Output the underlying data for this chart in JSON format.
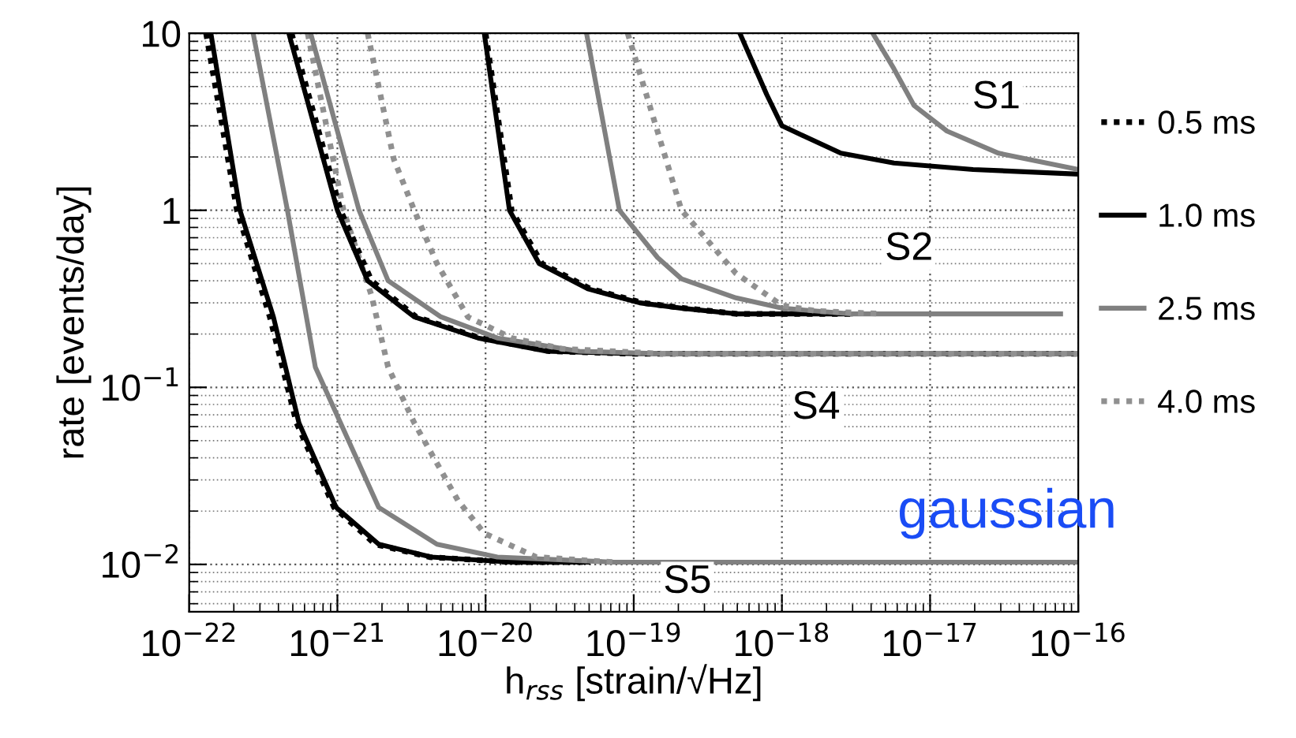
{
  "chart_data": {
    "type": "line",
    "xlabel": "h$_{rss}$ [strain/√Hz]",
    "ylabel": "rate [events/day]",
    "log": "xy",
    "xlim": [
      1e-22,
      1e-16
    ],
    "ylim": [
      0.0054,
      10
    ],
    "xticks": [
      {
        "value": 1e-22,
        "label": "10$^{−22}$"
      },
      {
        "value": 1e-21,
        "label": "10$^{−21}$"
      },
      {
        "value": 1e-20,
        "label": "10$^{−20}$"
      },
      {
        "value": 1e-19,
        "label": "10$^{−19}$"
      },
      {
        "value": 1e-18,
        "label": "10$^{−18}$"
      },
      {
        "value": 1e-17,
        "label": "10$^{−17}$"
      },
      {
        "value": 1e-16,
        "label": "10$^{−16}$"
      }
    ],
    "yticks": [
      {
        "value": 0.01,
        "label": "10$^{−2}$"
      },
      {
        "value": 0.1,
        "label": "10$^{−1}$"
      },
      1,
      10
    ],
    "grid": true,
    "legend": "right",
    "marker": "none",
    "series": [
      {
        "name": "0.5 ms",
        "color": "#000000",
        "line_style": "dotted",
        "x": [
          1.3e-22,
          2.1e-22,
          3.5e-22,
          5.3e-22,
          9.5e-22,
          1.8e-21,
          4.2e-21,
          1.5e-20,
          4.9e-20
        ],
        "values": [
          10,
          1.0,
          0.25,
          0.063,
          0.021,
          0.013,
          0.011,
          0.0103,
          0.0103
        ]
      },
      {
        "name": "1.0 ms",
        "color": "#000000",
        "line_style": "solid",
        "x": [
          1.4e-22,
          2.2e-22,
          3.7e-22,
          5.5e-22,
          9.8e-22,
          1.9e-21,
          4.3e-21,
          1.5e-20,
          4.9e-20
        ],
        "values": [
          10,
          1.0,
          0.25,
          0.063,
          0.021,
          0.013,
          0.011,
          0.0103,
          0.0103
        ]
      },
      {
        "name": "2.5 ms",
        "color": "#808080",
        "line_style": "solid",
        "x": [
          2.7e-22,
          4.6e-22,
          7.1e-22,
          1.9e-21,
          4.7e-21,
          1.2e-20,
          7.4e-20,
          1e-16
        ],
        "values": [
          10,
          1.0,
          0.13,
          0.021,
          0.013,
          0.011,
          0.0103,
          0.0103
        ]
      },
      {
        "name": "4.0 ms",
        "color": "#909090",
        "line_style": "dotted",
        "x": [
          6.3e-22,
          1.1e-21,
          1.7e-21,
          2.2e-21,
          3.3e-21,
          6.5e-21,
          9.8e-21,
          2.2e-20,
          7.4e-20
        ],
        "values": [
          10,
          1.0,
          0.33,
          0.13,
          0.063,
          0.023,
          0.015,
          0.011,
          0.0103
        ]
      },
      {
        "color": "#000000",
        "line_style": "dotted",
        "x": [
          4.9e-22,
          1.05e-21,
          1.7e-21,
          3.4e-21,
          9.2e-21,
          2.7e-20,
          9.6e-20,
          1e-16
        ],
        "values": [
          10,
          1.0,
          0.4,
          0.25,
          0.19,
          0.16,
          0.155,
          0.155
        ]
      },
      {
        "color": "#000000",
        "line_style": "solid",
        "x": [
          4.7e-22,
          1e-21,
          1.6e-21,
          3.3e-21,
          8.9e-21,
          2.6e-20,
          9.6e-20,
          1e-16
        ],
        "values": [
          10,
          1.0,
          0.4,
          0.25,
          0.19,
          0.16,
          0.155,
          0.155
        ]
      },
      {
        "color": "#808080",
        "line_style": "solid",
        "x": [
          6.6e-22,
          1.4e-21,
          2.2e-21,
          5e-21,
          1.2e-20,
          4.3e-20,
          1.5e-19,
          1e-16
        ],
        "values": [
          10,
          1.0,
          0.4,
          0.25,
          0.19,
          0.16,
          0.155,
          0.155
        ]
      },
      {
        "color": "#909090",
        "line_style": "dotted",
        "x": [
          1.6e-21,
          2.4e-21,
          3.3e-21,
          4.7e-21,
          7.6e-21,
          1.5e-20,
          3.3e-20,
          1.55e-19,
          1e-16
        ],
        "values": [
          10,
          1.95,
          1.0,
          0.5,
          0.25,
          0.19,
          0.165,
          0.155,
          0.155
        ]
      },
      {
        "color": "#000000",
        "line_style": "dotted",
        "x": [
          1e-20,
          1.5e-20,
          2.4e-20,
          5.1e-20,
          1.15e-19,
          2.2e-19,
          5e-19,
          2.9e-18
        ],
        "values": [
          10,
          1.0,
          0.5,
          0.36,
          0.3,
          0.28,
          0.26,
          0.26
        ]
      },
      {
        "color": "#000000",
        "line_style": "solid",
        "x": [
          9.8e-21,
          1.45e-20,
          2.3e-20,
          4.9e-20,
          1.1e-19,
          2.1e-19,
          4.9e-19,
          2.9e-18
        ],
        "values": [
          10,
          1.0,
          0.5,
          0.36,
          0.3,
          0.28,
          0.26,
          0.26
        ]
      },
      {
        "color": "#808080",
        "line_style": "solid",
        "x": [
          4.8e-20,
          8e-20,
          1.45e-19,
          2.1e-19,
          4.9e-19,
          1e-18,
          2.9e-18,
          7.6e-17
        ],
        "values": [
          10,
          1.0,
          0.54,
          0.41,
          0.32,
          0.28,
          0.26,
          0.26
        ]
      },
      {
        "color": "#909090",
        "line_style": "dotted",
        "x": [
          9.1e-20,
          2.1e-19,
          4.9e-19,
          1e-18,
          1.7e-18,
          4.8e-18
        ],
        "values": [
          10,
          1.0,
          0.44,
          0.29,
          0.27,
          0.26
        ]
      },
      {
        "color": "#000000",
        "line_style": "solid",
        "x": [
          5.2e-19,
          7.9e-19,
          1e-18,
          2.5e-18,
          5.7e-18,
          1.95e-17,
          1e-16
        ],
        "values": [
          10,
          4.5,
          3.0,
          2.1,
          1.85,
          1.7,
          1.6
        ]
      },
      {
        "color": "#808080",
        "line_style": "solid",
        "x": [
          4.1e-18,
          5.7e-18,
          7.8e-18,
          1.3e-17,
          2.9e-17,
          1e-16
        ],
        "values": [
          10,
          6.3,
          3.9,
          2.8,
          2.1,
          1.7
        ]
      }
    ],
    "annotations": [
      {
        "text": "S1",
        "x": 2.8e-17,
        "y": 4.3
      },
      {
        "text": "S2",
        "x": 7.2e-18,
        "y": 0.6
      },
      {
        "text": "S4",
        "x": 1.7e-18,
        "y": 0.076
      },
      {
        "text": "S5",
        "x": 2.3e-19,
        "y": 0.0079
      },
      "gaussian"
    ]
  }
}
